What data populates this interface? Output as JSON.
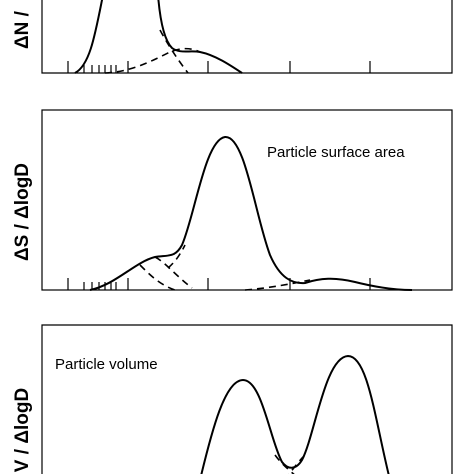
{
  "panels": [
    {
      "ylabel": "ΔN /"
    },
    {
      "ylabel": "ΔS / ΔlogD",
      "note": "Particle surface area"
    },
    {
      "ylabel": "V / ΔlogD",
      "note": "Particle volume"
    }
  ]
}
